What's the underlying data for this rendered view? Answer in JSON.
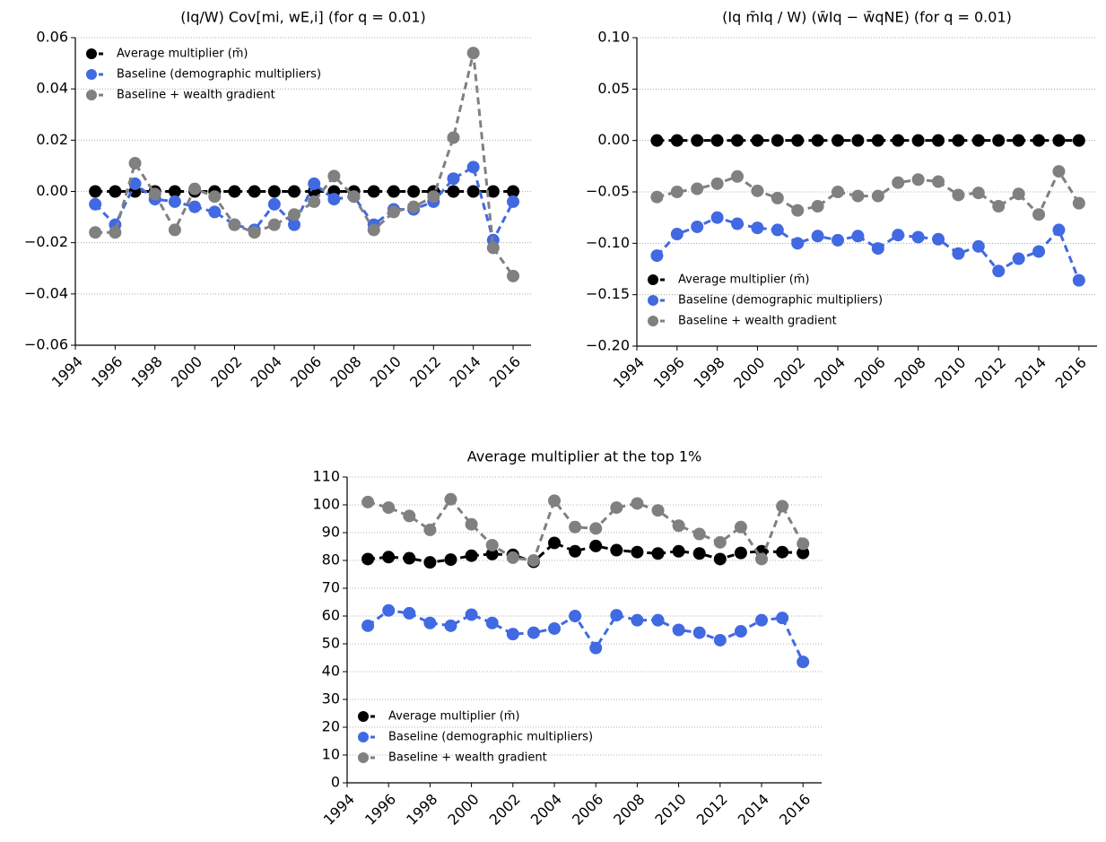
{
  "chart_data": [
    {
      "type": "line",
      "title": "(Iq/W) Cov[mi, wE,i] (for q = 0.01)",
      "x": [
        1995,
        1996,
        1997,
        1998,
        1999,
        2000,
        2001,
        2002,
        2003,
        2004,
        2005,
        2006,
        2007,
        2008,
        2009,
        2010,
        2011,
        2012,
        2013,
        2014,
        2015,
        2016
      ],
      "xlim": [
        1994,
        2016.9
      ],
      "xticks": [
        1994,
        1996,
        1998,
        2000,
        2002,
        2004,
        2006,
        2008,
        2010,
        2012,
        2014,
        2016
      ],
      "ylim": [
        -0.06,
        0.06
      ],
      "yticks": [
        {
          "value": -0.06,
          "label": "−0.06"
        },
        {
          "value": -0.04,
          "label": "−0.04"
        },
        {
          "value": -0.02,
          "label": "−0.02"
        },
        {
          "value": 0,
          "label": "0.00"
        },
        0.02,
        0.04,
        0.06
      ],
      "grid": true,
      "legend": "upper left",
      "series": [
        {
          "name": "Average multiplier (m̄)",
          "color": "#000000",
          "values": [
            0,
            0,
            0,
            0,
            0,
            0,
            0,
            0,
            0,
            0,
            0,
            0,
            0,
            0,
            0,
            0,
            0,
            0,
            0,
            0,
            0,
            0
          ]
        },
        {
          "name": "Baseline (demographic multipliers)",
          "color": "#4169e1",
          "values": [
            -0.005,
            -0.013,
            0.003,
            -0.003,
            -0.004,
            -0.006,
            -0.008,
            -0.013,
            -0.015,
            -0.005,
            -0.013,
            0.003,
            -0.003,
            -0.002,
            -0.013,
            -0.007,
            -0.007,
            -0.004,
            0.005,
            0.0095,
            -0.019,
            -0.004
          ]
        },
        {
          "name": "Baseline + wealth gradient",
          "color": "#808080",
          "values": [
            -0.016,
            -0.016,
            0.011,
            -0.001,
            -0.015,
            0.001,
            -0.002,
            -0.013,
            -0.016,
            -0.013,
            -0.009,
            -0.004,
            0.006,
            -0.002,
            -0.015,
            -0.008,
            -0.006,
            -0.002,
            0.021,
            0.054,
            -0.022,
            -0.033
          ]
        }
      ]
    },
    {
      "type": "line",
      "title": "(Iq m̄Iq / W) (w̄Iq − w̄qNE) (for q = 0.01)",
      "x": [
        1995,
        1996,
        1997,
        1998,
        1999,
        2000,
        2001,
        2002,
        2003,
        2004,
        2005,
        2006,
        2007,
        2008,
        2009,
        2010,
        2011,
        2012,
        2013,
        2014,
        2015,
        2016
      ],
      "xlim": [
        1994,
        2016.9
      ],
      "xticks": [
        1994,
        1996,
        1998,
        2000,
        2002,
        2004,
        2006,
        2008,
        2010,
        2012,
        2014,
        2016
      ],
      "ylim": [
        -0.2,
        0.1
      ],
      "yticks": [
        {
          "value": -0.2,
          "label": "−0.20"
        },
        {
          "value": -0.15,
          "label": "−0.15"
        },
        {
          "value": -0.1,
          "label": "−0.10"
        },
        {
          "value": -0.05,
          "label": "−0.05"
        },
        {
          "value": 0,
          "label": "0.00"
        },
        0.05,
        {
          "value": 0.1,
          "label": "0.10"
        }
      ],
      "grid": true,
      "legend": "lower left",
      "series": [
        {
          "name": "Average multiplier (m̄)",
          "color": "#000000",
          "values": [
            0,
            0,
            0,
            0,
            0,
            0,
            0,
            0,
            0,
            0,
            0,
            0,
            0,
            0,
            0,
            0,
            0,
            0,
            0,
            0,
            0,
            0
          ]
        },
        {
          "name": "Baseline (demographic multipliers)",
          "color": "#4169e1",
          "values": [
            -0.112,
            -0.091,
            -0.084,
            -0.075,
            -0.081,
            -0.085,
            -0.087,
            -0.1,
            -0.093,
            -0.097,
            -0.093,
            -0.105,
            -0.092,
            -0.094,
            -0.096,
            -0.11,
            -0.103,
            -0.127,
            -0.115,
            -0.108,
            -0.087,
            -0.136
          ]
        },
        {
          "name": "Baseline + wealth gradient",
          "color": "#808080",
          "values": [
            -0.055,
            -0.05,
            -0.047,
            -0.042,
            -0.035,
            -0.049,
            -0.056,
            -0.068,
            -0.064,
            -0.05,
            -0.054,
            -0.054,
            -0.041,
            -0.038,
            -0.04,
            -0.053,
            -0.051,
            -0.064,
            -0.052,
            -0.072,
            -0.03,
            -0.061
          ]
        }
      ]
    },
    {
      "type": "line",
      "title": "Average multiplier at the top 1%",
      "x": [
        1995,
        1996,
        1997,
        1998,
        1999,
        2000,
        2001,
        2002,
        2003,
        2004,
        2005,
        2006,
        2007,
        2008,
        2009,
        2010,
        2011,
        2012,
        2013,
        2014,
        2015,
        2016
      ],
      "xlim": [
        1994,
        2016.9
      ],
      "xticks": [
        1994,
        1996,
        1998,
        2000,
        2002,
        2004,
        2006,
        2008,
        2010,
        2012,
        2014,
        2016
      ],
      "ylim": [
        0,
        110
      ],
      "yticks": [
        0,
        10,
        20,
        30,
        40,
        50,
        60,
        70,
        80,
        90,
        100,
        110
      ],
      "grid": true,
      "legend": "lower left",
      "series": [
        {
          "name": "Average multiplier (m̄)",
          "color": "#000000",
          "values": [
            80.5,
            81.2,
            80.8,
            79.3,
            80.3,
            81.7,
            82.3,
            82,
            79.5,
            86.3,
            83.3,
            85.2,
            83.7,
            83,
            82.5,
            83.3,
            82.5,
            80.5,
            82.7,
            83.3,
            83,
            82.7
          ]
        },
        {
          "name": "Baseline (demographic multipliers)",
          "color": "#4169e1",
          "values": [
            56.5,
            62,
            61,
            57.5,
            56.5,
            60.5,
            57.5,
            53.5,
            54,
            55.5,
            60,
            48.5,
            60.3,
            58.5,
            58.5,
            55,
            54,
            51.3,
            54.5,
            58.5,
            59.3,
            43.5
          ]
        },
        {
          "name": "Baseline + wealth gradient",
          "color": "#808080",
          "values": [
            101,
            99,
            96,
            91,
            102,
            93,
            85.5,
            81,
            80,
            101.5,
            92,
            91.5,
            99,
            100.5,
            98,
            92.5,
            89.5,
            86.5,
            92,
            80.5,
            99.5,
            86
          ]
        }
      ]
    }
  ]
}
